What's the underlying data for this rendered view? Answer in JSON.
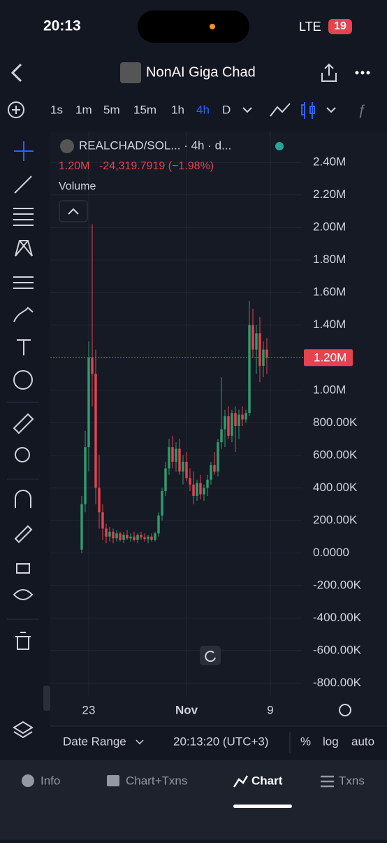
{
  "status_bar": {
    "time": "20:13",
    "network": "LTE",
    "battery": "19"
  },
  "header": {
    "title": "NonAI Giga Chad"
  },
  "intervals": [
    "1s",
    "1m",
    "5m",
    "15m",
    "1h",
    "4h",
    "D"
  ],
  "chart_data": {
    "type": "candlestick",
    "symbol": "REALCHAD/SOL... · 4h · d...",
    "legend_price": "1.20M",
    "legend_change": "-24,319.7919 (−1.98%)",
    "indicator": "Volume",
    "categories": [
      null,
      null,
      "23",
      null,
      null,
      null,
      null,
      null,
      null,
      null,
      null,
      null,
      null,
      null,
      null,
      null,
      null,
      null,
      null,
      null,
      null,
      null,
      null,
      null,
      null,
      null,
      null,
      null,
      null,
      null,
      "Nov",
      null,
      null,
      null,
      null,
      null,
      null,
      null,
      null,
      null,
      null,
      null,
      null,
      null,
      null,
      null,
      null,
      null,
      null,
      null,
      null,
      null,
      null,
      null,
      "9",
      null
    ],
    "open": [
      20000,
      300000,
      650000,
      1200000,
      1100000,
      400000,
      250000,
      150000,
      100000,
      130000,
      90000,
      120000,
      80000,
      110000,
      90000,
      100000,
      80000,
      110000,
      95000,
      85000,
      100000,
      80000,
      120000,
      230000,
      380000,
      520000,
      650000,
      560000,
      640000,
      500000,
      560000,
      460000,
      420000,
      350000,
      430000,
      360000,
      400000,
      450000,
      540000,
      500000,
      680000,
      760000,
      840000,
      720000,
      860000,
      780000,
      850000,
      820000,
      860000,
      1400000,
      1250000,
      1350000,
      1150000,
      1250000,
      null,
      null
    ],
    "high": [
      350000,
      750000,
      1300000,
      2020000,
      1250000,
      600000,
      300000,
      180000,
      160000,
      150000,
      140000,
      130000,
      130000,
      140000,
      120000,
      130000,
      120000,
      130000,
      120000,
      110000,
      120000,
      130000,
      250000,
      400000,
      560000,
      700000,
      720000,
      680000,
      700000,
      600000,
      620000,
      520000,
      500000,
      450000,
      480000,
      420000,
      480000,
      560000,
      620000,
      700000,
      1080000,
      880000,
      900000,
      880000,
      900000,
      880000,
      900000,
      880000,
      1550000,
      1500000,
      1400000,
      1450000,
      1300000,
      1320000,
      null,
      null
    ],
    "low": [
      0,
      250000,
      500000,
      900000,
      300000,
      150000,
      80000,
      60000,
      70000,
      60000,
      70000,
      70000,
      60000,
      80000,
      70000,
      70000,
      60000,
      80000,
      70000,
      60000,
      70000,
      70000,
      100000,
      200000,
      350000,
      480000,
      520000,
      500000,
      480000,
      420000,
      440000,
      380000,
      300000,
      320000,
      330000,
      320000,
      350000,
      420000,
      480000,
      470000,
      640000,
      650000,
      700000,
      680000,
      620000,
      700000,
      780000,
      800000,
      840000,
      1200000,
      1100000,
      1050000,
      1080000,
      1100000,
      null,
      null
    ],
    "close": [
      300000,
      650000,
      1200000,
      1100000,
      400000,
      250000,
      150000,
      100000,
      130000,
      90000,
      120000,
      80000,
      110000,
      90000,
      100000,
      80000,
      110000,
      95000,
      85000,
      100000,
      80000,
      120000,
      230000,
      380000,
      520000,
      650000,
      560000,
      640000,
      500000,
      560000,
      460000,
      420000,
      350000,
      430000,
      360000,
      400000,
      450000,
      540000,
      500000,
      680000,
      760000,
      840000,
      720000,
      860000,
      780000,
      850000,
      820000,
      860000,
      1400000,
      1250000,
      1350000,
      1150000,
      1250000,
      1200000,
      null,
      null
    ],
    "up_color": "#2f9e6e",
    "down_color": "#e5434f",
    "grid": true,
    "ylim": [
      -880000,
      2590000
    ],
    "yticks": [
      {
        "value": 2400000,
        "label": "2.40M"
      },
      {
        "value": 2200000,
        "label": "2.20M"
      },
      {
        "value": 2000000,
        "label": "2.00M"
      },
      {
        "value": 1800000,
        "label": "1.80M"
      },
      {
        "value": 1600000,
        "label": "1.60M"
      },
      {
        "value": 1400000,
        "label": "1.40M"
      },
      {
        "value": 1000000,
        "label": "1.00M"
      },
      {
        "value": 800000,
        "label": "800.00K"
      },
      {
        "value": 600000,
        "label": "600.00K"
      },
      {
        "value": 400000,
        "label": "400.00K"
      },
      {
        "value": 200000,
        "label": "200.00K"
      },
      {
        "value": 0,
        "label": "0.0000"
      },
      {
        "value": -200000,
        "label": "-200.00K"
      },
      {
        "value": -400000,
        "label": "-400.00K"
      },
      {
        "value": -600000,
        "label": "-600.00K"
      },
      {
        "value": -800000,
        "label": "-800.00K"
      }
    ],
    "last_price": {
      "value": 1200000,
      "label": "1.20M"
    }
  },
  "footer": {
    "date_range": "Date Range",
    "time": "20:13:20 (UTC+3)",
    "percent": "%",
    "log": "log",
    "auto": "auto"
  },
  "tabs": [
    "Info",
    "Chart+Txns",
    "Chart",
    "Txns"
  ]
}
